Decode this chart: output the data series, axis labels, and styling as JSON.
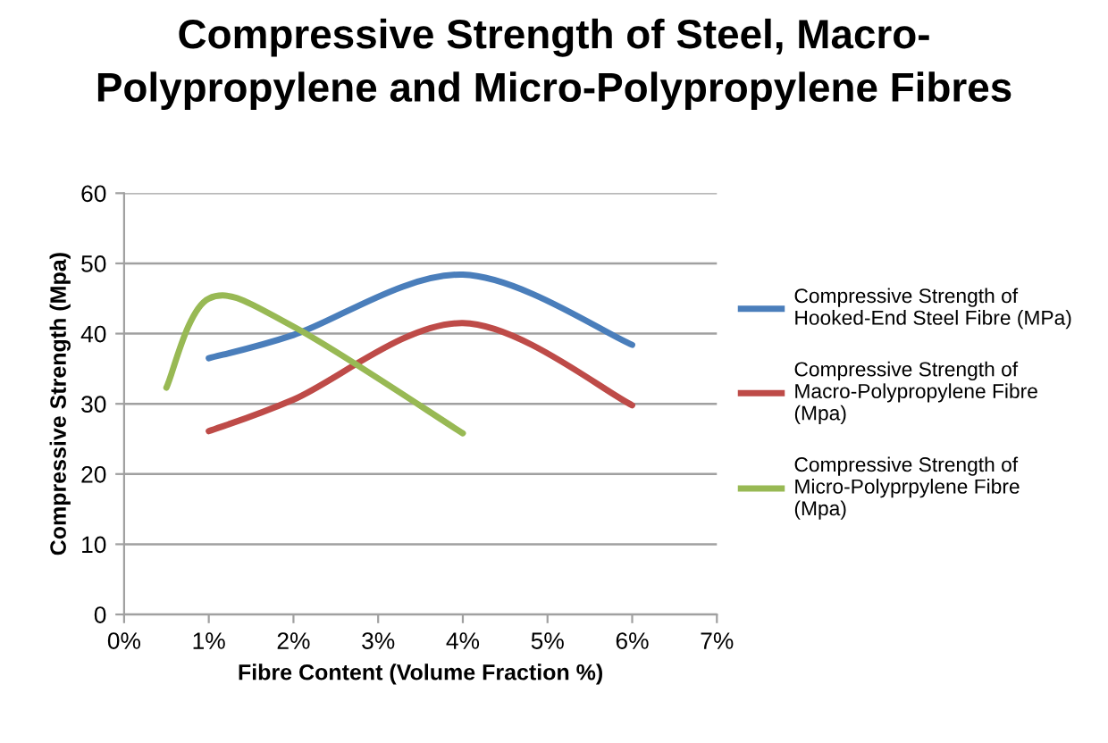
{
  "chart_data": {
    "type": "line",
    "title": "Compressive Strength of Steel, Macro-\nPolypropylene and Micro-Polypropylene Fibres",
    "xlabel": "Fibre Content (Volume Fraction %)",
    "ylabel": "Compressive Strength (Mpa)",
    "series": [
      {
        "name": "Compressive Strength of\nHooked-End Steel Fibre (MPa)",
        "color": "#4a7ebb",
        "x": [
          1,
          2,
          4,
          6
        ],
        "values": [
          36.5,
          39.8,
          48.4,
          38.4
        ]
      },
      {
        "name": "Compressive Strength of\nMacro-Polypropylene Fibre\n(Mpa)",
        "color": "#be4b48",
        "x": [
          1,
          2,
          4,
          6
        ],
        "values": [
          26.1,
          30.6,
          41.5,
          29.8
        ]
      },
      {
        "name": "Compressive Strength of\nMicro-Polyprpylene Fibre\n(Mpa)",
        "color": "#98b954",
        "x": [
          0.5,
          1,
          2,
          4
        ],
        "values": [
          32.3,
          45,
          41,
          25.8
        ]
      }
    ],
    "xlim": [
      0,
      7
    ],
    "xticks": [
      {
        "value": 0,
        "label": "0%"
      },
      {
        "value": 1,
        "label": "1%"
      },
      {
        "value": 2,
        "label": "2%"
      },
      {
        "value": 3,
        "label": "3%"
      },
      {
        "value": 4,
        "label": "4%"
      },
      {
        "value": 5,
        "label": "5%"
      },
      {
        "value": 6,
        "label": "6%"
      },
      {
        "value": 7,
        "label": "7%"
      }
    ],
    "ylim": [
      0,
      60
    ],
    "yticks": [
      0,
      10,
      20,
      30,
      40,
      50,
      60
    ],
    "grid": "y",
    "legend": "right",
    "marker": "none",
    "line_style": "solid"
  }
}
